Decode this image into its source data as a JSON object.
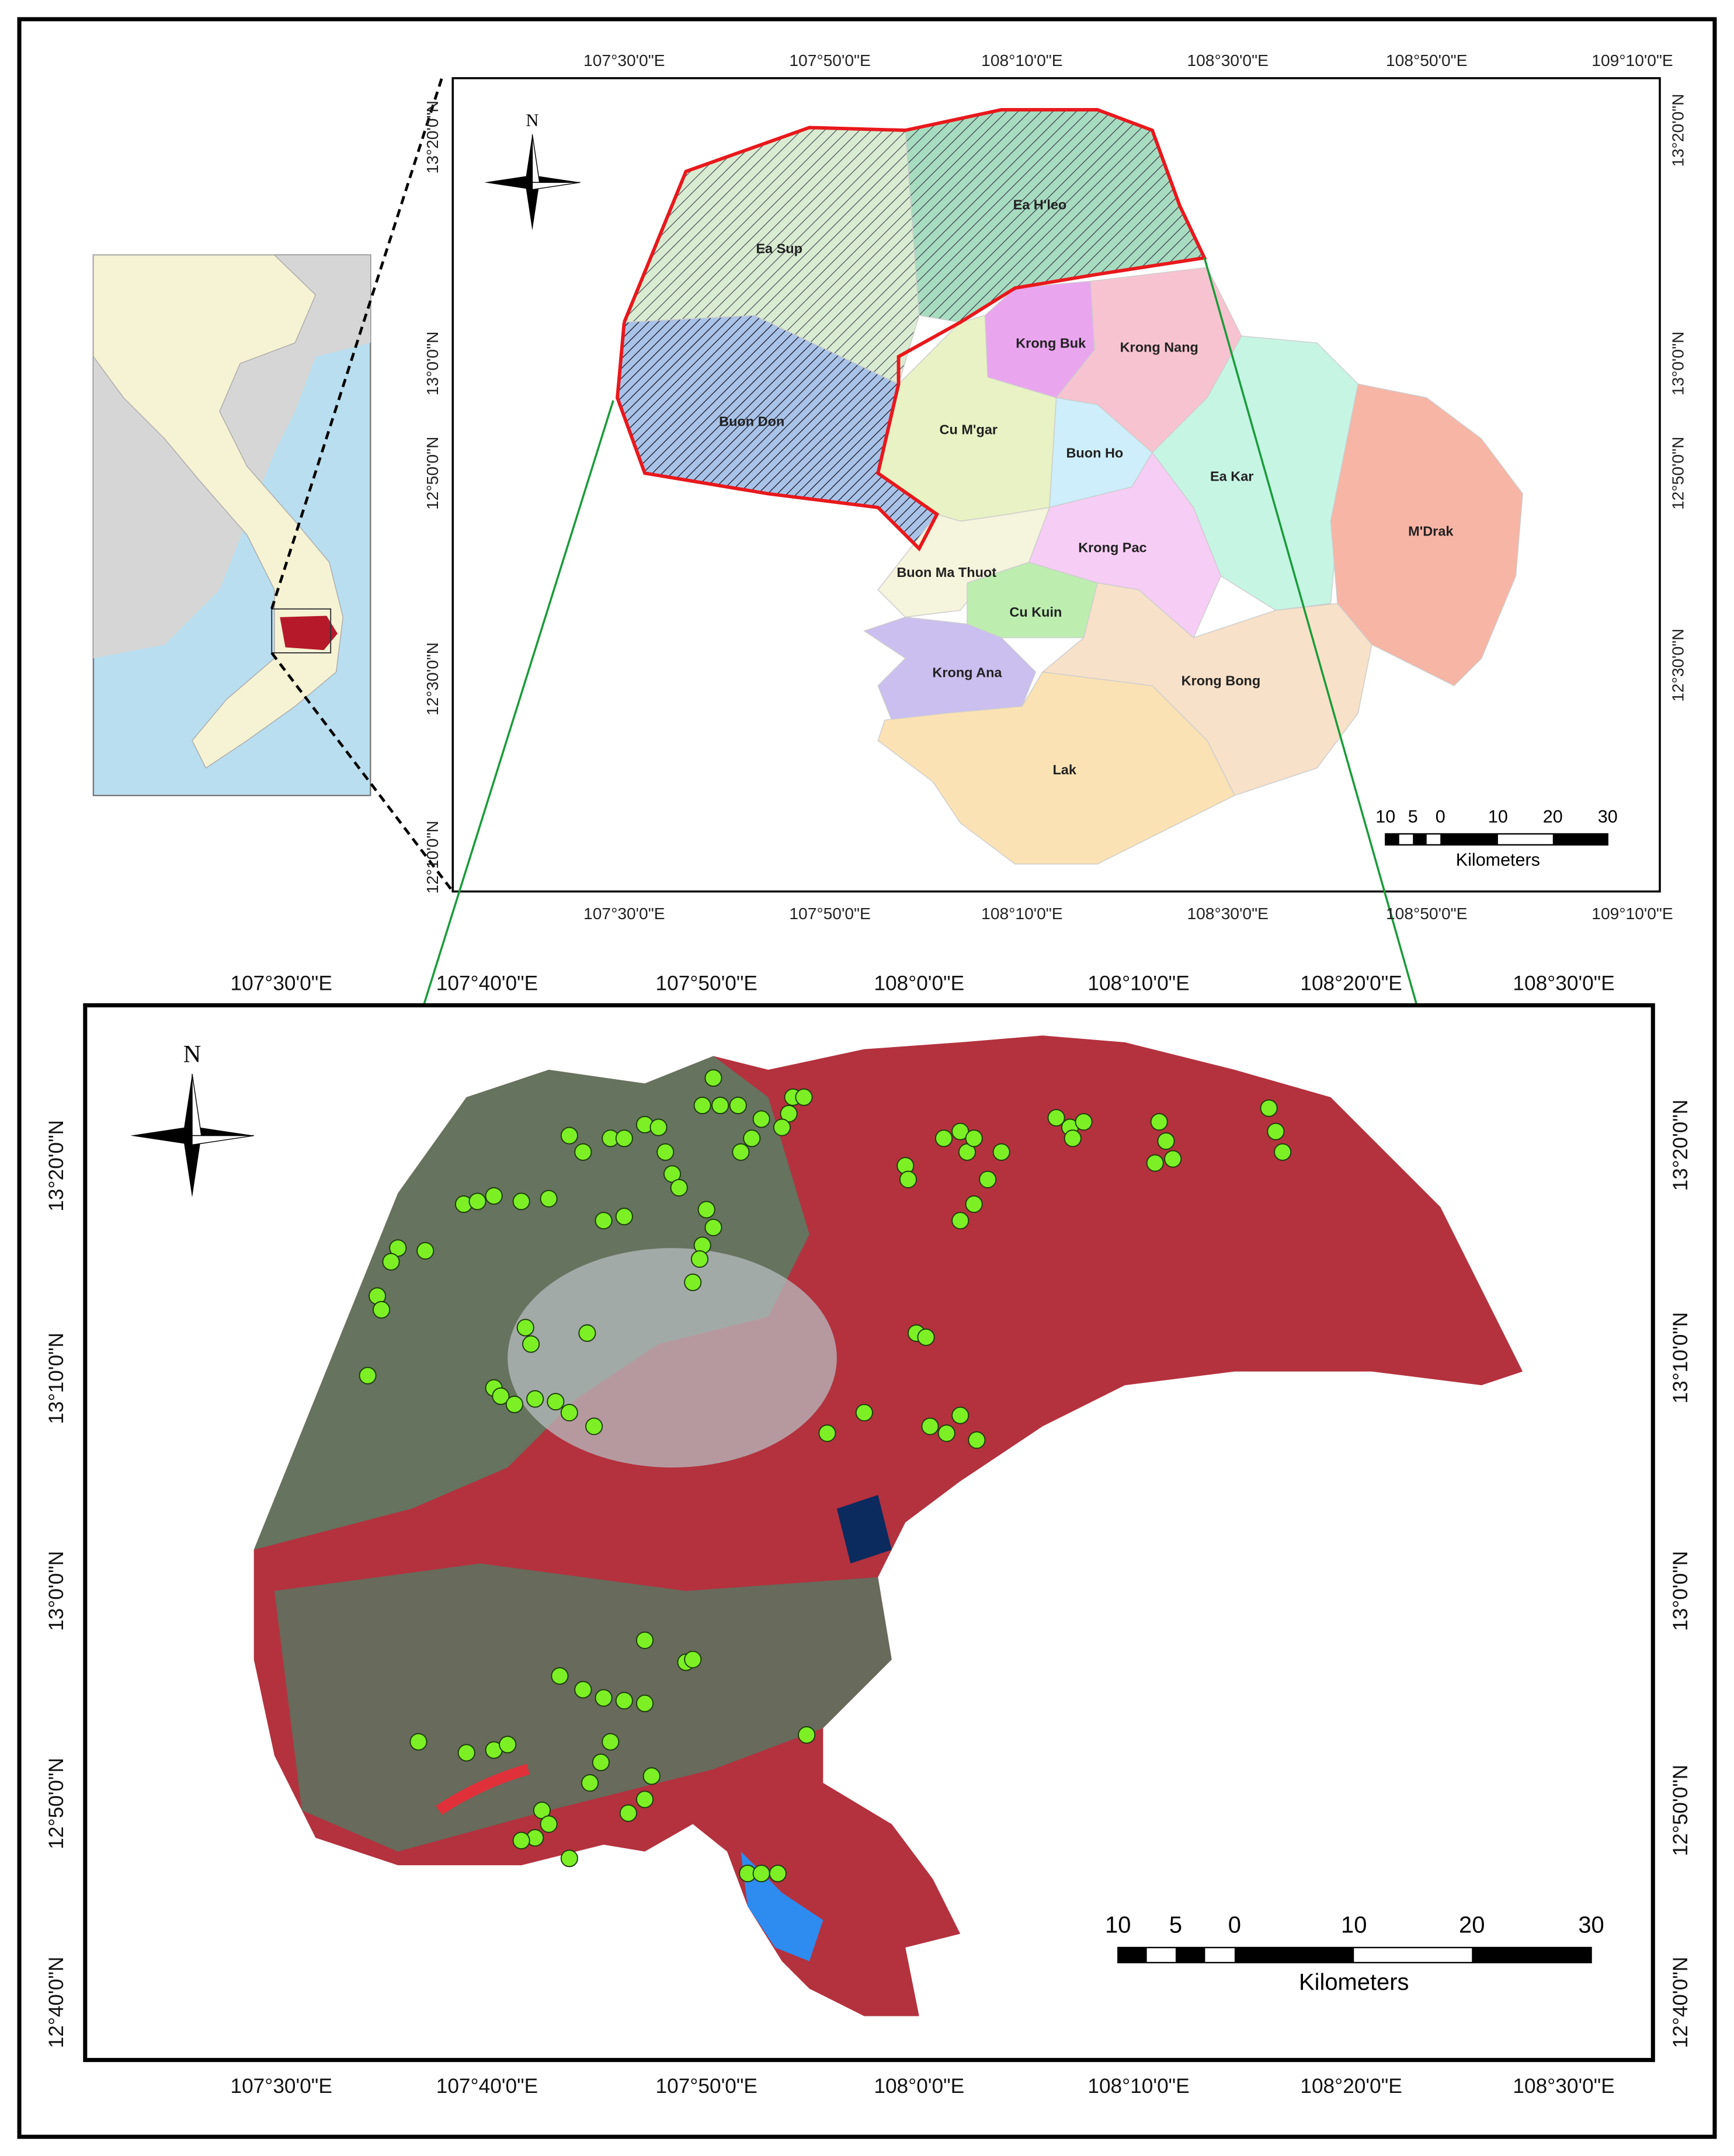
{
  "district_map": {
    "north": "N",
    "top_ticks": [
      "107°30'0\"E",
      "107°50'0\"E",
      "108°10'0\"E",
      "108°30'0\"E",
      "108°50'0\"E",
      "109°10'0\"E"
    ],
    "bottom_ticks": [
      "107°30'0\"E",
      "107°50'0\"E",
      "108°10'0\"E",
      "108°30'0\"E",
      "108°50'0\"E",
      "109°10'0\"E"
    ],
    "left_ticks": [
      "13°20'0\"N",
      "13°0'0\"N",
      "12°50'0\"N",
      "12°30'0\"N",
      "12°10'0\"N"
    ],
    "right_ticks": [
      "13°20'0\"N",
      "13°0'0\"N",
      "12°50'0\"N",
      "12°30'0\"N"
    ],
    "districts": [
      "Ea Sup",
      "Ea H'leo",
      "Buon Don",
      "Krong Buk",
      "Krong Nang",
      "Cu M'gar",
      "Buon Ho",
      "Ea Kar",
      "M'Drak",
      "Krong Pac",
      "Buon Ma Thuot",
      "Cu Kuin",
      "Krong Ana",
      "Krong Bong",
      "Lak"
    ],
    "scale_bar": {
      "labels": [
        10,
        5,
        0,
        10,
        20,
        30
      ],
      "unit": "Kilometers"
    }
  },
  "image_map": {
    "north": "N",
    "top_ticks": [
      "107°30'0\"E",
      "107°40'0\"E",
      "107°50'0\"E",
      "108°0'0\"E",
      "108°10'0\"E",
      "108°20'0\"E",
      "108°30'0\"E"
    ],
    "bottom_ticks": [
      "107°30'0\"E",
      "107°40'0\"E",
      "107°50'0\"E",
      "108°0'0\"E",
      "108°10'0\"E",
      "108°20'0\"E",
      "108°30'0\"E"
    ],
    "left_ticks": [
      "13°20'0\"N",
      "13°10'0\"N",
      "13°0'0\"N",
      "12°50'0\"N",
      "12°40'0\"N"
    ],
    "right_ticks": [
      "13°20'0\"N",
      "13°10'0\"N",
      "13°0'0\"N",
      "12°50'0\"N",
      "12°40'0\"N"
    ],
    "scale_bar": {
      "labels": [
        10,
        5,
        0,
        10,
        20,
        30
      ],
      "unit": "Kilometers"
    }
  }
}
